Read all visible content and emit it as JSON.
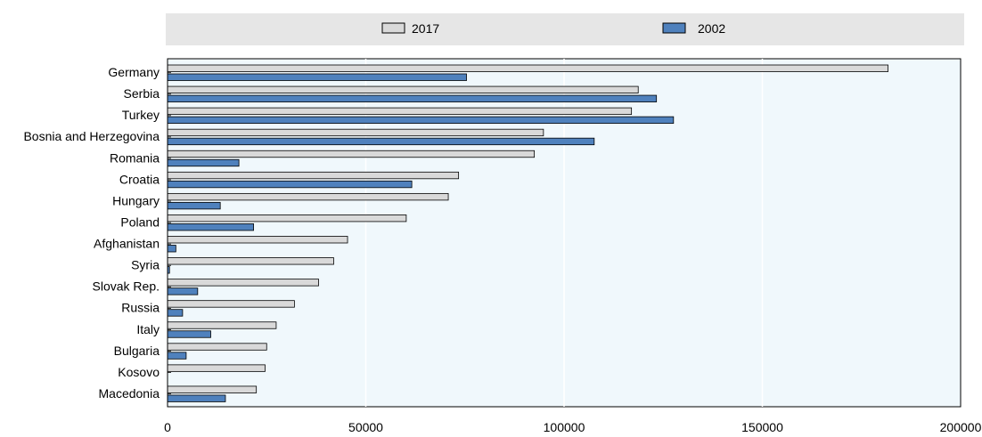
{
  "chart_data": {
    "type": "bar",
    "orientation": "horizontal",
    "title": "",
    "xlabel": "",
    "ylabel": "",
    "categories": [
      "Germany",
      "Serbia",
      "Turkey",
      "Bosnia and Herzegovina",
      "Romania",
      "Croatia",
      "Hungary",
      "Poland",
      "Afghanistan",
      "Syria",
      "Slovak Rep.",
      "Russia",
      "Italy",
      "Bulgaria",
      "Kosovo",
      "Macedonia"
    ],
    "series": [
      {
        "name": "2017",
        "color": "#d9d9d9",
        "values": [
          181700,
          118700,
          117000,
          94800,
          92500,
          73400,
          70800,
          60200,
          45400,
          41900,
          38100,
          32000,
          27400,
          25000,
          24600,
          22400
        ]
      },
      {
        "name": "2002",
        "color": "#4f81bd",
        "values": [
          75400,
          123300,
          127600,
          107600,
          18000,
          61600,
          13300,
          21700,
          2100,
          500,
          7600,
          3800,
          10900,
          4700,
          0,
          14600
        ]
      }
    ],
    "xlim": [
      0,
      200000
    ],
    "xticks": [
      "0",
      "50000",
      "100000",
      "150000",
      "200000"
    ],
    "grid": "vertical",
    "legend": "top"
  }
}
